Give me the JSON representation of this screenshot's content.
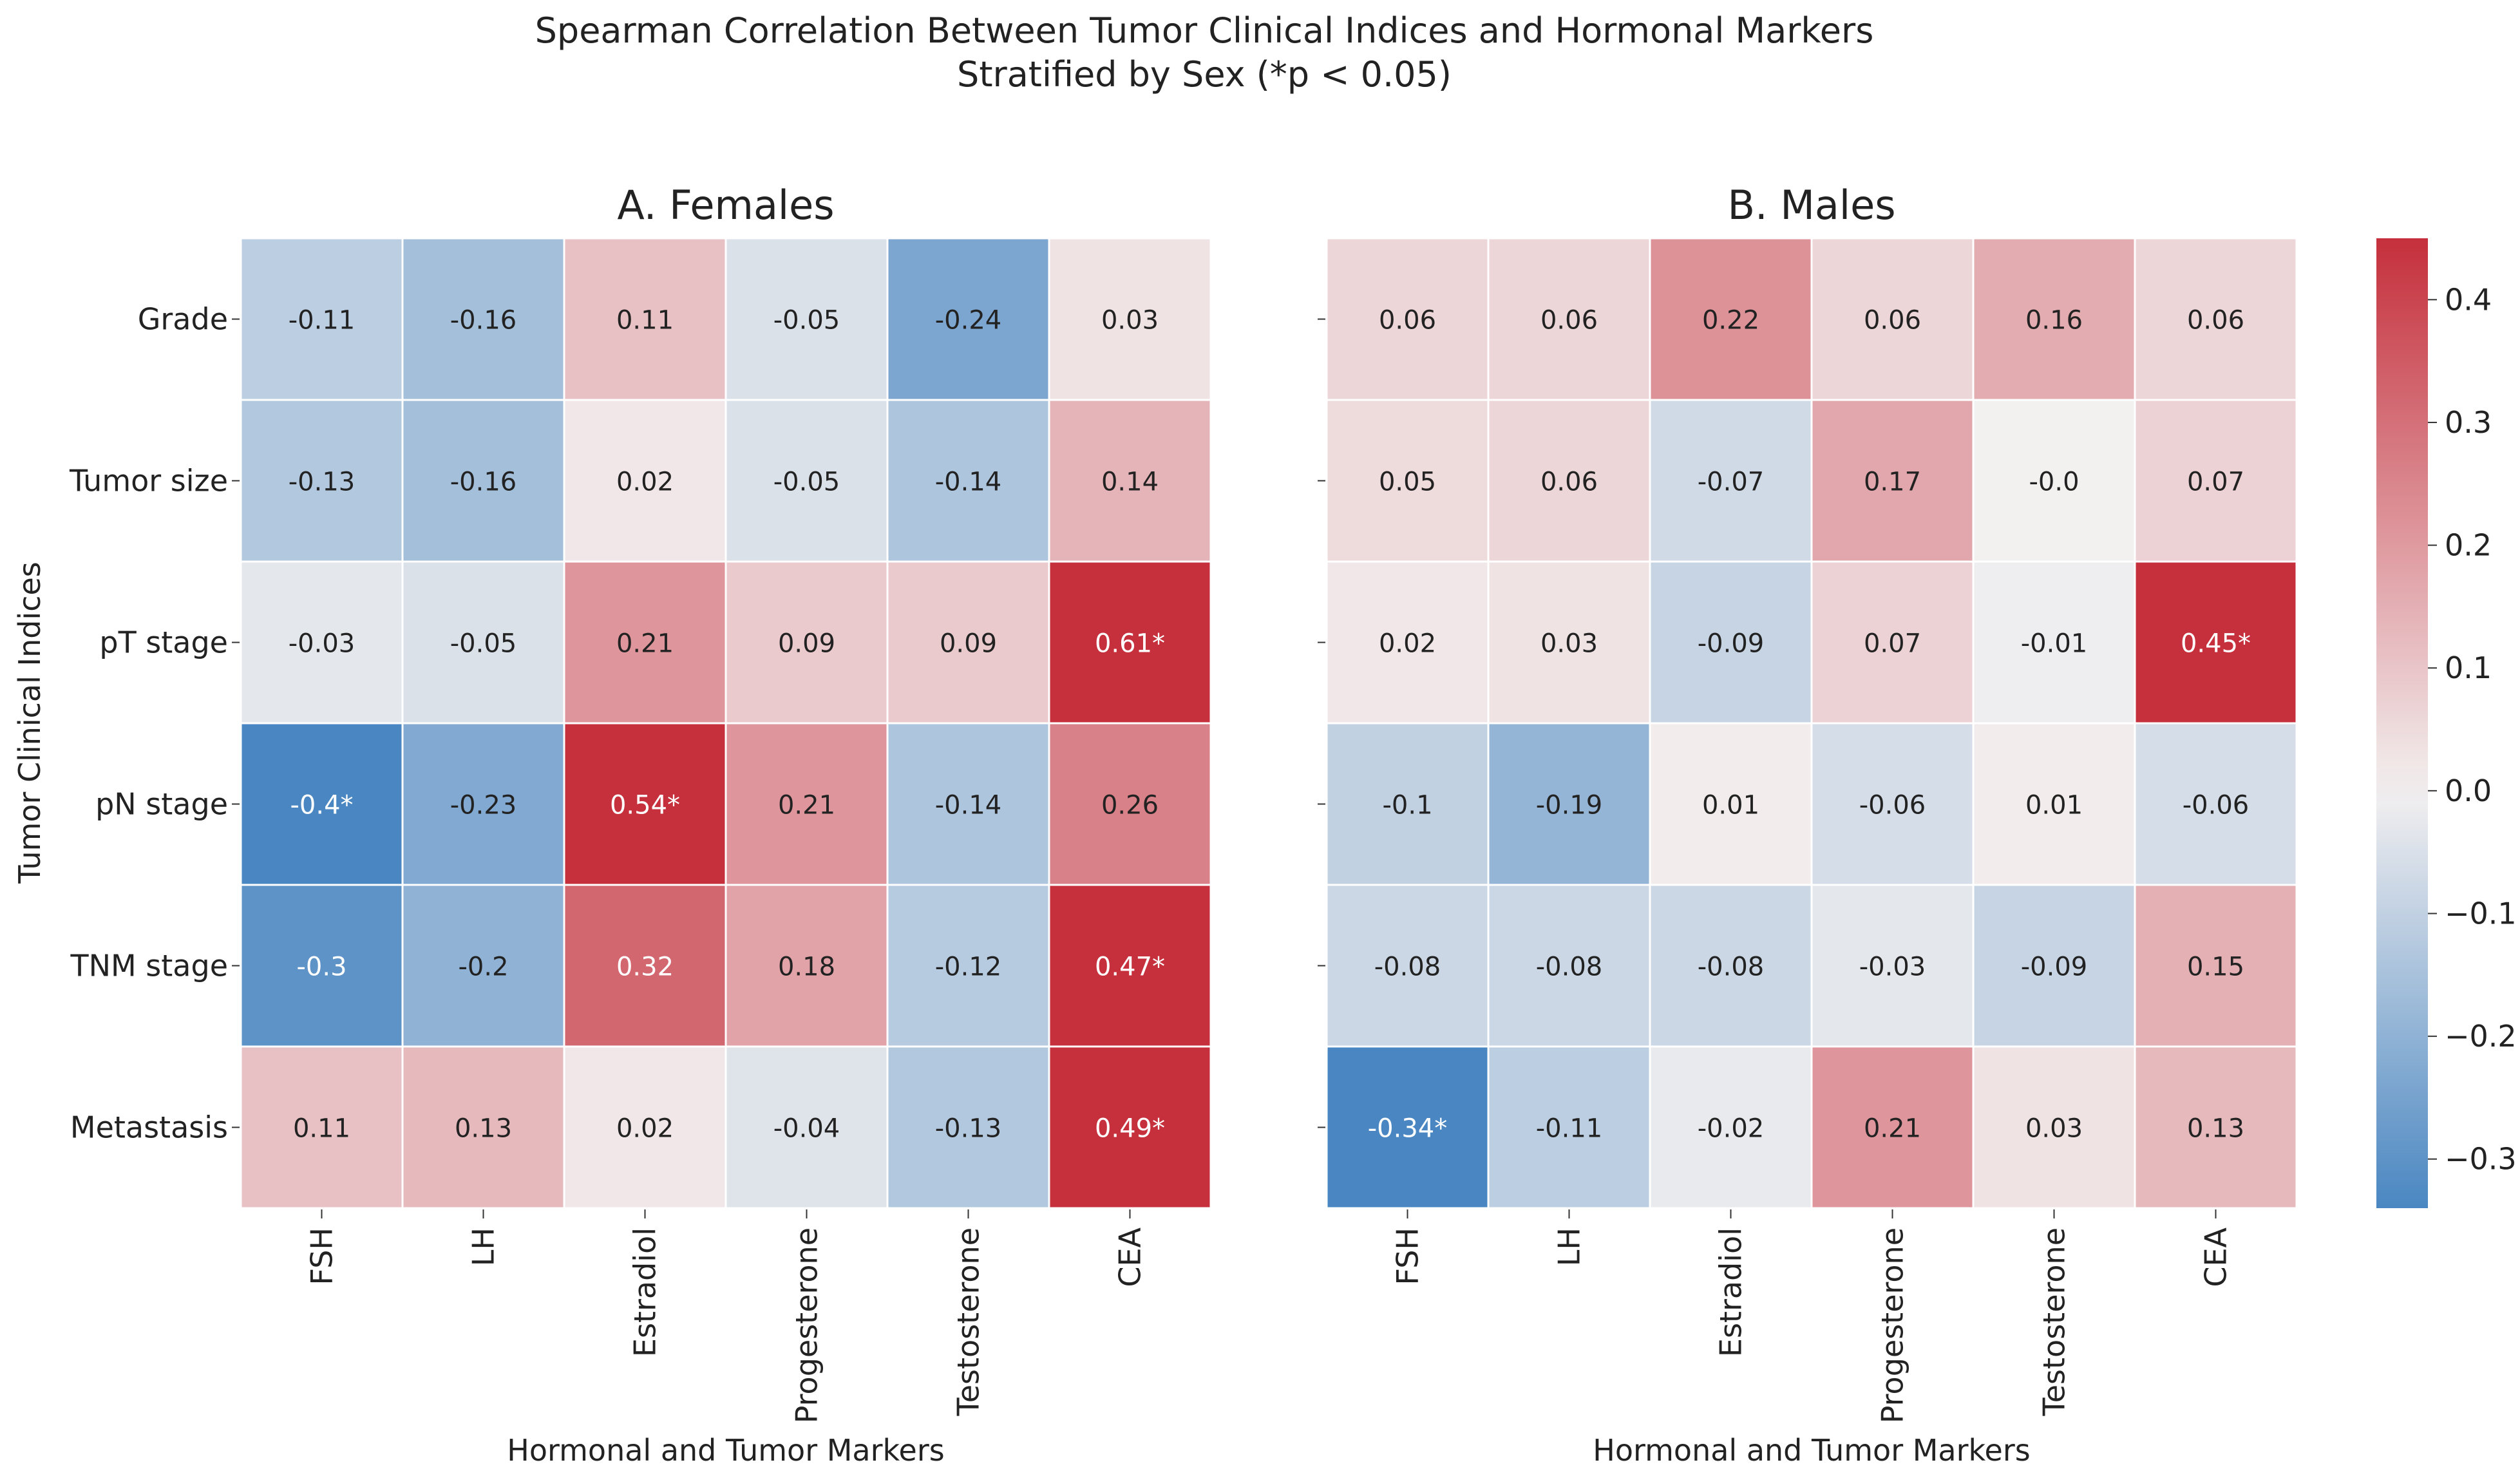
{
  "chart_data": {
    "type": "heatmap",
    "title_line1": "Spearman Correlation Between Tumor Clinical Indices and Hormonal Markers",
    "title_line2": "Stratified by Sex (*p < 0.05)",
    "ylabel": "Tumor Clinical Indices",
    "rows": [
      "Grade",
      "Tumor size",
      "pT stage",
      "pN stage",
      "TNM stage",
      "Metastasis"
    ],
    "columns": [
      "FSH",
      "LH",
      "Estradiol",
      "Progesterone",
      "Testosterone",
      "CEA"
    ],
    "colorscale": {
      "vmin": -0.34,
      "vmax": 0.45,
      "low": "#4a87c2",
      "mid": "#f3f0f0",
      "high": "#c5303c"
    },
    "colorbar_ticks": [
      "0.4",
      "0.3",
      "0.2",
      "0.1",
      "0.0",
      "−0.1",
      "−0.2",
      "−0.3"
    ],
    "colorbar_tick_values": [
      0.4,
      0.3,
      0.2,
      0.1,
      0.0,
      -0.1,
      -0.2,
      -0.3
    ],
    "panels": [
      {
        "title": "A. Females",
        "xlabel": "Hormonal and Tumor Markers",
        "values": [
          [
            -0.11,
            -0.16,
            0.11,
            -0.05,
            -0.24,
            0.03
          ],
          [
            -0.13,
            -0.16,
            0.02,
            -0.05,
            -0.14,
            0.14
          ],
          [
            -0.03,
            -0.05,
            0.21,
            0.09,
            0.09,
            0.61
          ],
          [
            -0.4,
            -0.23,
            0.54,
            0.21,
            -0.14,
            0.26
          ],
          [
            -0.3,
            -0.2,
            0.32,
            0.18,
            -0.12,
            0.47
          ],
          [
            0.11,
            0.13,
            0.02,
            -0.04,
            -0.13,
            0.49
          ]
        ],
        "labels": [
          [
            "-0.11",
            "-0.16",
            "0.11",
            "-0.05",
            "-0.24",
            "0.03"
          ],
          [
            "-0.13",
            "-0.16",
            "0.02",
            "-0.05",
            "-0.14",
            "0.14"
          ],
          [
            "-0.03",
            "-0.05",
            "0.21",
            "0.09",
            "0.09",
            "0.61*"
          ],
          [
            "-0.4*",
            "-0.23",
            "0.54*",
            "0.21",
            "-0.14",
            "0.26"
          ],
          [
            "-0.3",
            "-0.2",
            "0.32",
            "0.18",
            "-0.12",
            "0.47*"
          ],
          [
            "0.11",
            "0.13",
            "0.02",
            "-0.04",
            "-0.13",
            "0.49*"
          ]
        ]
      },
      {
        "title": "B. Males",
        "xlabel": "Hormonal and Tumor Markers",
        "values": [
          [
            0.06,
            0.06,
            0.22,
            0.06,
            0.16,
            0.06
          ],
          [
            0.05,
            0.06,
            -0.07,
            0.17,
            0.0,
            0.07
          ],
          [
            0.02,
            0.03,
            -0.09,
            0.07,
            -0.01,
            0.45
          ],
          [
            -0.1,
            -0.19,
            0.01,
            -0.06,
            0.01,
            -0.06
          ],
          [
            -0.08,
            -0.08,
            -0.08,
            -0.03,
            -0.09,
            0.15
          ],
          [
            -0.34,
            -0.11,
            -0.02,
            0.21,
            0.03,
            0.13
          ]
        ],
        "labels": [
          [
            "0.06",
            "0.06",
            "0.22",
            "0.06",
            "0.16",
            "0.06"
          ],
          [
            "0.05",
            "0.06",
            "-0.07",
            "0.17",
            "-0.0",
            "0.07"
          ],
          [
            "0.02",
            "0.03",
            "-0.09",
            "0.07",
            "-0.01",
            "0.45*"
          ],
          [
            "-0.1",
            "-0.19",
            "0.01",
            "-0.06",
            "0.01",
            "-0.06"
          ],
          [
            "-0.08",
            "-0.08",
            "-0.08",
            "-0.03",
            "-0.09",
            "0.15"
          ],
          [
            "-0.34*",
            "-0.11",
            "-0.02",
            "0.21",
            "0.03",
            "0.13"
          ]
        ]
      }
    ]
  }
}
